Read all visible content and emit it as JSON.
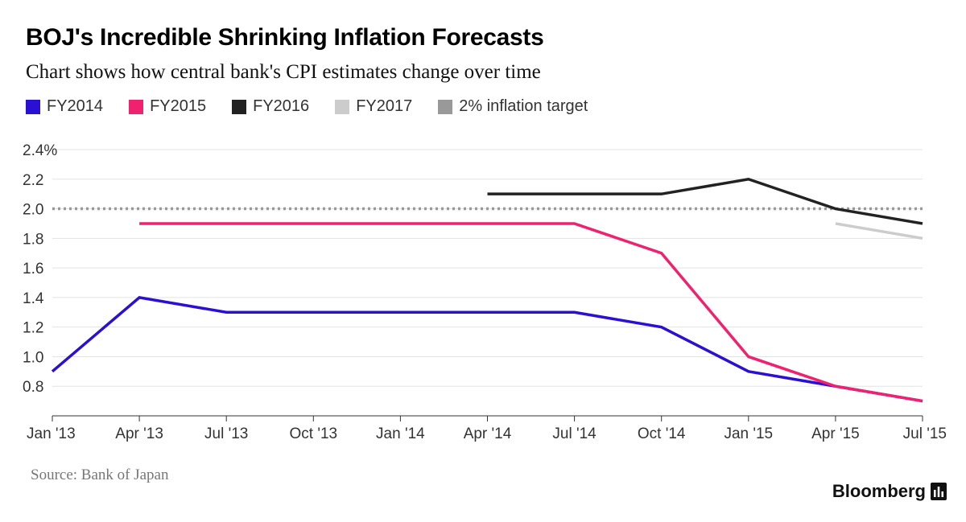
{
  "header": {
    "title": "BOJ's Incredible Shrinking Inflation Forecasts",
    "subtitle": "Chart shows how central bank's CPI estimates change over time"
  },
  "legend": [
    {
      "label": "FY2014",
      "color": "#2a0fd4"
    },
    {
      "label": "FY2015",
      "color": "#f0216d"
    },
    {
      "label": "FY2016",
      "color": "#222222"
    },
    {
      "label": "FY2017",
      "color": "#cccccc"
    },
    {
      "label": "2% inflation target",
      "color": "#999999"
    }
  ],
  "footer": {
    "source": "Source: Bank of Japan",
    "brand": "Bloomberg",
    "brand_icon": "bloomberg-bars-icon"
  },
  "chart_data": {
    "type": "line",
    "categories": [
      "Jan '13",
      "Apr '13",
      "Jul '13",
      "Oct '13",
      "Jan '14",
      "Apr '14",
      "Jul '14",
      "Oct '14",
      "Jan '15",
      "Apr '15",
      "Jul '15"
    ],
    "y_ticks": [
      "2.4%",
      "2.2",
      "2.0",
      "1.8",
      "1.6",
      "1.4",
      "1.2",
      "1.0",
      "0.8"
    ],
    "y_tick_values": [
      2.4,
      2.2,
      2.0,
      1.8,
      1.6,
      1.4,
      1.2,
      1.0,
      0.8
    ],
    "ylim": [
      0.6,
      2.4
    ],
    "grid": true,
    "reference_line": {
      "name": "2% inflation target",
      "value": 2.0,
      "color": "#999999",
      "style": "dotted"
    },
    "series": [
      {
        "name": "FY2014",
        "color": "#2a0fd4",
        "values": [
          0.9,
          1.4,
          1.3,
          1.3,
          1.3,
          1.3,
          1.3,
          1.2,
          0.9,
          0.8,
          0.7
        ]
      },
      {
        "name": "FY2015",
        "color": "#f0216d",
        "values": [
          null,
          1.9,
          1.9,
          1.9,
          1.9,
          1.9,
          1.9,
          1.7,
          1.0,
          0.8,
          0.7
        ]
      },
      {
        "name": "FY2016",
        "color": "#222222",
        "values": [
          null,
          null,
          null,
          null,
          null,
          2.1,
          2.1,
          2.1,
          2.2,
          2.0,
          1.9
        ]
      },
      {
        "name": "FY2017",
        "color": "#cccccc",
        "values": [
          null,
          null,
          null,
          null,
          null,
          null,
          null,
          null,
          null,
          1.9,
          1.8
        ]
      }
    ]
  }
}
